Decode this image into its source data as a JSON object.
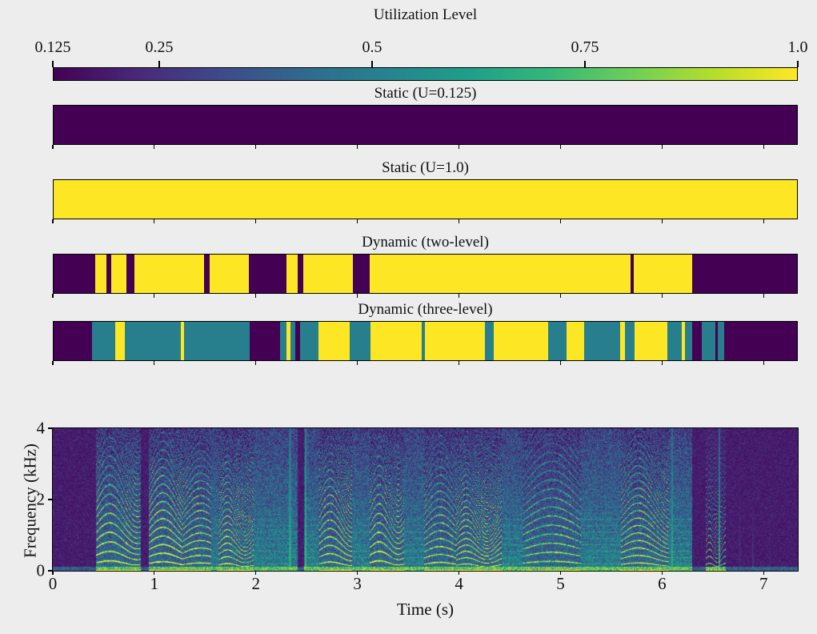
{
  "figure": {
    "background": "#ededed"
  },
  "chart_data": {
    "type": "multi-panel",
    "description": "Utilization level timelines (static and dynamic policies) over a speech spectrogram",
    "palette": {
      "low": "#440154",
      "mid": "#277f8e",
      "high": "#fde725",
      "low_value": 0.125,
      "high_value": 1.0
    },
    "colorbar": {
      "title": "Utilization Level",
      "vmin": 0.125,
      "vmax": 1.0,
      "ticks": [
        {
          "label": "0.125",
          "value": 0.125
        },
        {
          "label": "0.25",
          "value": 0.25
        },
        {
          "label": "0.5",
          "value": 0.5
        },
        {
          "label": "0.75",
          "value": 0.75
        },
        {
          "label": "1.0",
          "value": 1.0
        }
      ],
      "gradient": [
        "#440154",
        "#482878",
        "#3e4989",
        "#31688e",
        "#26828e",
        "#1f9e89",
        "#35b779",
        "#6ece58",
        "#b5de2b",
        "#fde725"
      ]
    },
    "time_axis": {
      "label": "Time (s)",
      "ticks": [
        0,
        1,
        2,
        3,
        4,
        5,
        6,
        7
      ],
      "t_max": 7.337
    },
    "utilization_panels": [
      {
        "id": "static-low",
        "title": "Static (U=0.125)",
        "segments": [
          {
            "t0": 0,
            "t1": 7.337,
            "level": "low"
          }
        ]
      },
      {
        "id": "static-high",
        "title": "Static (U=1.0)",
        "segments": [
          {
            "t0": 0,
            "t1": 7.337,
            "level": "high"
          }
        ]
      },
      {
        "id": "dynamic-two-level",
        "title": "Dynamic (two-level)",
        "segments": [
          {
            "t0": 0.0,
            "t1": 0.413,
            "level": "low"
          },
          {
            "t0": 0.413,
            "t1": 0.521,
            "level": "high"
          },
          {
            "t0": 0.521,
            "t1": 0.566,
            "level": "low"
          },
          {
            "t0": 0.566,
            "t1": 0.716,
            "level": "high"
          },
          {
            "t0": 0.716,
            "t1": 0.795,
            "level": "low"
          },
          {
            "t0": 0.795,
            "t1": 1.486,
            "level": "high"
          },
          {
            "t0": 1.486,
            "t1": 1.541,
            "level": "low"
          },
          {
            "t0": 1.541,
            "t1": 1.928,
            "level": "high"
          },
          {
            "t0": 1.928,
            "t1": 2.299,
            "level": "low"
          },
          {
            "t0": 2.299,
            "t1": 2.41,
            "level": "high"
          },
          {
            "t0": 2.41,
            "t1": 2.465,
            "level": "low"
          },
          {
            "t0": 2.465,
            "t1": 2.954,
            "level": "high"
          },
          {
            "t0": 2.954,
            "t1": 3.121,
            "level": "low"
          },
          {
            "t0": 3.121,
            "t1": 5.693,
            "level": "high"
          },
          {
            "t0": 5.693,
            "t1": 5.722,
            "level": "low"
          },
          {
            "t0": 5.722,
            "t1": 6.306,
            "level": "high"
          },
          {
            "t0": 6.306,
            "t1": 7.337,
            "level": "low"
          }
        ]
      },
      {
        "id": "dynamic-three-level",
        "title": "Dynamic (three-level)",
        "segments": [
          {
            "t0": 0.0,
            "t1": 0.381,
            "level": "low"
          },
          {
            "t0": 0.381,
            "t1": 0.605,
            "level": "mid"
          },
          {
            "t0": 0.605,
            "t1": 0.699,
            "level": "high"
          },
          {
            "t0": 0.699,
            "t1": 1.257,
            "level": "mid"
          },
          {
            "t0": 1.257,
            "t1": 1.289,
            "level": "high"
          },
          {
            "t0": 1.289,
            "t1": 1.934,
            "level": "mid"
          },
          {
            "t0": 1.934,
            "t1": 2.236,
            "level": "low"
          },
          {
            "t0": 2.236,
            "t1": 2.302,
            "level": "mid"
          },
          {
            "t0": 2.302,
            "t1": 2.341,
            "level": "high"
          },
          {
            "t0": 2.341,
            "t1": 2.388,
            "level": "mid"
          },
          {
            "t0": 2.388,
            "t1": 2.433,
            "level": "low"
          },
          {
            "t0": 2.433,
            "t1": 2.617,
            "level": "mid"
          },
          {
            "t0": 2.617,
            "t1": 2.92,
            "level": "high"
          },
          {
            "t0": 2.92,
            "t1": 3.13,
            "level": "mid"
          },
          {
            "t0": 3.13,
            "t1": 3.63,
            "level": "high"
          },
          {
            "t0": 3.63,
            "t1": 3.667,
            "level": "mid"
          },
          {
            "t0": 3.667,
            "t1": 4.26,
            "level": "high"
          },
          {
            "t0": 4.26,
            "t1": 4.34,
            "level": "mid"
          },
          {
            "t0": 4.34,
            "t1": 4.88,
            "level": "high"
          },
          {
            "t0": 4.88,
            "t1": 5.062,
            "level": "mid"
          },
          {
            "t0": 5.062,
            "t1": 5.233,
            "level": "high"
          },
          {
            "t0": 5.233,
            "t1": 5.589,
            "level": "mid"
          },
          {
            "t0": 5.589,
            "t1": 5.641,
            "level": "high"
          },
          {
            "t0": 5.641,
            "t1": 5.733,
            "level": "mid"
          },
          {
            "t0": 5.733,
            "t1": 6.058,
            "level": "high"
          },
          {
            "t0": 6.058,
            "t1": 6.203,
            "level": "mid"
          },
          {
            "t0": 6.203,
            "t1": 6.235,
            "level": "high"
          },
          {
            "t0": 6.235,
            "t1": 6.3,
            "level": "mid"
          },
          {
            "t0": 6.3,
            "t1": 6.4,
            "level": "low"
          },
          {
            "t0": 6.4,
            "t1": 6.532,
            "level": "mid"
          },
          {
            "t0": 6.532,
            "t1": 6.558,
            "level": "low"
          },
          {
            "t0": 6.558,
            "t1": 6.616,
            "level": "mid"
          },
          {
            "t0": 6.616,
            "t1": 7.337,
            "level": "low"
          }
        ]
      }
    ],
    "spectrogram": {
      "type": "spectrogram",
      "xlabel": "Time (s)",
      "ylabel": "Frequency (kHz)",
      "xlim": [
        0,
        7.337
      ],
      "ylim": [
        0,
        4
      ],
      "xticks": [
        0,
        1,
        2,
        3,
        4,
        5,
        6,
        7
      ],
      "yticks": [
        0,
        2,
        4
      ],
      "colormap": [
        "#440154",
        "#482878",
        "#3e4989",
        "#31688e",
        "#26828e",
        "#1f9e89",
        "#35b779",
        "#6ece58",
        "#b5de2b",
        "#fde725"
      ],
      "segments": [
        {
          "t0": 0.0,
          "t1": 0.42,
          "type": "silence"
        },
        {
          "t0": 0.42,
          "t1": 0.86,
          "type": "voiced",
          "level": 0.9,
          "f0": 0.21,
          "arc": 1.6
        },
        {
          "t0": 0.86,
          "t1": 0.94,
          "type": "silence"
        },
        {
          "t0": 0.94,
          "t1": 1.28,
          "type": "voiced",
          "level": 0.95,
          "f0": 0.19,
          "arc": 1.2
        },
        {
          "t0": 1.28,
          "t1": 1.56,
          "type": "voiced",
          "level": 0.8,
          "f0": 0.165,
          "arc": 0.8
        },
        {
          "t0": 1.56,
          "t1": 1.63,
          "type": "medium",
          "level": 0.4
        },
        {
          "t0": 1.63,
          "t1": 1.98,
          "type": "voiced",
          "level": 0.85,
          "f0": 0.15,
          "arc": 2.0
        },
        {
          "t0": 1.98,
          "t1": 2.41,
          "type": "medium",
          "level": 0.5
        },
        {
          "t0": 2.41,
          "t1": 2.47,
          "type": "silence"
        },
        {
          "t0": 2.47,
          "t1": 2.62,
          "type": "medium",
          "level": 0.55
        },
        {
          "t0": 2.62,
          "t1": 2.95,
          "type": "voiced",
          "level": 0.9,
          "f0": 0.185,
          "arc": 1.5
        },
        {
          "t0": 2.95,
          "t1": 3.12,
          "type": "medium",
          "level": 0.55
        },
        {
          "t0": 3.12,
          "t1": 3.46,
          "type": "voiced",
          "level": 0.85,
          "f0": 0.21,
          "arc": 1.8
        },
        {
          "t0": 3.46,
          "t1": 3.66,
          "type": "medium",
          "level": 0.5
        },
        {
          "t0": 3.66,
          "t1": 3.97,
          "type": "voiced",
          "level": 0.7,
          "f0": 0.175,
          "arc": 1.0
        },
        {
          "t0": 3.97,
          "t1": 4.42,
          "type": "voiced",
          "level": 0.85,
          "f0": 0.14,
          "arc": 2.2
        },
        {
          "t0": 4.42,
          "t1": 4.63,
          "type": "medium",
          "level": 0.55
        },
        {
          "t0": 4.63,
          "t1": 5.2,
          "type": "voiced",
          "level": 0.6,
          "f0": 0.2,
          "arc": 1.0
        },
        {
          "t0": 5.2,
          "t1": 5.6,
          "type": "medium",
          "level": 0.6
        },
        {
          "t0": 5.6,
          "t1": 6.07,
          "type": "voiced",
          "level": 0.8,
          "f0": 0.165,
          "arc": 1.4
        },
        {
          "t0": 6.07,
          "t1": 6.3,
          "type": "medium",
          "level": 0.6
        },
        {
          "t0": 6.3,
          "t1": 6.43,
          "type": "silence"
        },
        {
          "t0": 6.43,
          "t1": 6.63,
          "type": "voiced",
          "level": 0.75,
          "f0": 0.155,
          "arc": 2.5,
          "bg": "dark"
        },
        {
          "t0": 6.63,
          "t1": 7.337,
          "type": "silence"
        }
      ],
      "events": [
        {
          "t": 2.335,
          "v": 0.7,
          "w": 0.01
        },
        {
          "t": 2.49,
          "v": 0.75,
          "w": 0.01
        },
        {
          "t": 6.1,
          "v": 0.7,
          "w": 0.008
        },
        {
          "t": 6.57,
          "v": 0.65,
          "w": 0.008
        },
        {
          "t": 6.77,
          "v": 0.28,
          "w": 0.006
        },
        {
          "t": 6.9,
          "v": 0.24,
          "w": 0.006
        },
        {
          "t": 7.07,
          "v": 0.2,
          "w": 0.006
        }
      ]
    }
  }
}
